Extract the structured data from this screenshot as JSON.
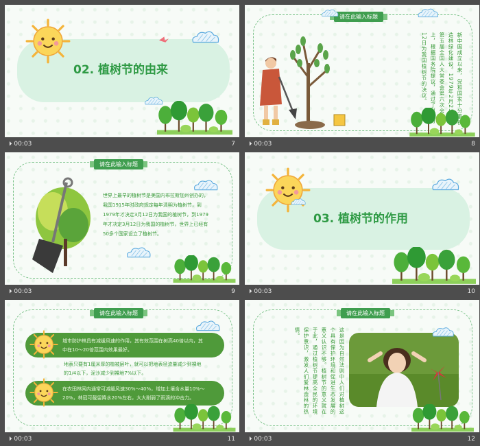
{
  "slides": [
    {
      "num": "7",
      "time": "00:03",
      "title": "02. 植树节的由来"
    },
    {
      "num": "8",
      "time": "00:03",
      "tag": "请在此输入标题",
      "text": "新中国成立以来，党和国家十分重视造林绿化建设。1979年2月23日，第五届全国人大常委会第六次会议上，根据国务院提议，通过了以3月12日为我国植树节的决议。"
    },
    {
      "num": "9",
      "time": "00:03",
      "tag": "请在此输入标题",
      "lines": [
        "世界上最早的植树节是美国内布拉斯加州创办的，",
        "我国1915年时政府规定每年清明为植树节，到",
        "1979年才决定3月12日为我国的植树节，到1979",
        "年才决定3月12日为我国的植树节，世界上已经有",
        "50多个国家设立了植树节。"
      ]
    },
    {
      "num": "10",
      "time": "00:03",
      "title": "03. 植树节的作用"
    },
    {
      "num": "11",
      "time": "00:03",
      "tag": "请在此输入标题",
      "b1": [
        "城市防护林具有减缓风速的作用，其有效范围在树高40倍以内，其",
        "中在10～20倍范围内效果最好。"
      ],
      "mid": [
        "地表只要有1厘米厚的植被层叶，就可以把地表径流量减少到裸地",
        "的1/4以下，泥沙减少到裸地7%以下。"
      ],
      "b2": [
        "在农田林网内通常可减缓风速30%～40%，增加土壤含水量10%～",
        "20%，林冠可截留降水20%左右，大大削弱了雨滴的冲击力。"
      ]
    },
    {
      "num": "12",
      "time": "00:03",
      "tag": "请在此输入标题",
      "text": "这是因为自然法则中人们对植树这个具有保护环境和促进生态发展的意义认识不够。植树节的意义就在于此，通过植树节提高全民的环境保护意识，激发人们爱林造林的热情。"
    }
  ],
  "ui": {
    "play_glyph": "⏵",
    "colors": {
      "accent": "#2e9a44",
      "pill": "#d9f2e3",
      "bar": "#4d4d4d"
    }
  }
}
